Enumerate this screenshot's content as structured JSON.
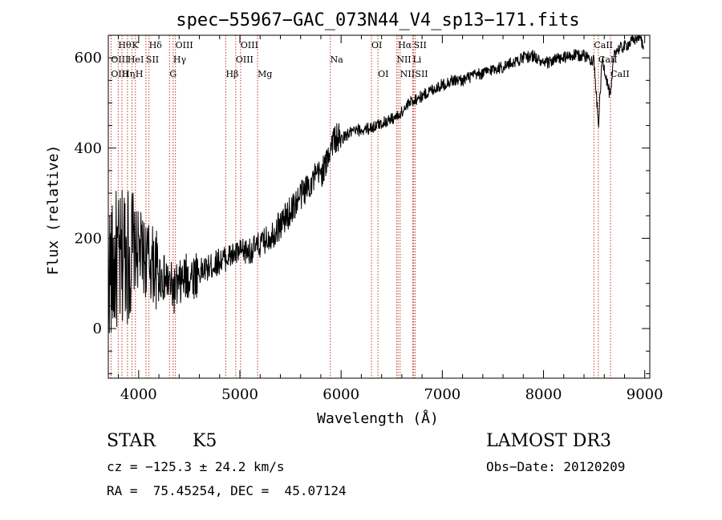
{
  "chart_data": {
    "type": "line",
    "title": "spec−55967−GAC_073N44_V4_sp13−171.fits",
    "xlabel": "Wavelength (Å)",
    "ylabel": "Flux (relative)",
    "xlim": [
      3700,
      9050
    ],
    "ylim": [
      -110,
      650
    ],
    "x_ticks": [
      4000,
      5000,
      6000,
      7000,
      8000,
      9000
    ],
    "x_tick_labels": [
      "4000",
      "5000",
      "6000",
      "7000",
      "8000",
      "9000"
    ],
    "y_ticks": [
      0,
      200,
      400,
      600
    ],
    "y_tick_labels": [
      "0",
      "200",
      "400",
      "600"
    ],
    "grid": false,
    "line_color": "#000000",
    "marker_color": "#c0392b",
    "series": [
      {
        "name": "flux",
        "x": [
          3700,
          3740,
          3780,
          3820,
          3860,
          3900,
          3950,
          4000,
          4050,
          4100,
          4150,
          4200,
          4250,
          4300,
          4350,
          4400,
          4450,
          4500,
          4600,
          4700,
          4800,
          4900,
          5000,
          5100,
          5200,
          5300,
          5400,
          5500,
          5600,
          5700,
          5800,
          5850,
          5890,
          5920,
          6000,
          6100,
          6200,
          6300,
          6400,
          6500,
          6560,
          6600,
          6700,
          6800,
          6900,
          7000,
          7100,
          7200,
          7300,
          7400,
          7500,
          7600,
          7700,
          7800,
          7900,
          8000,
          8100,
          8200,
          8300,
          8400,
          8498,
          8542,
          8580,
          8662,
          8700,
          8800,
          8900,
          8950,
          8990
        ],
        "y": [
          140,
          120,
          150,
          130,
          190,
          160,
          170,
          175,
          160,
          150,
          140,
          120,
          110,
          100,
          85,
          95,
          110,
          115,
          125,
          135,
          150,
          160,
          168,
          172,
          185,
          205,
          230,
          260,
          295,
          325,
          345,
          360,
          400,
          420,
          420,
          435,
          440,
          445,
          455,
          465,
          470,
          480,
          505,
          515,
          530,
          540,
          550,
          550,
          560,
          565,
          575,
          580,
          590,
          600,
          605,
          585,
          595,
          600,
          605,
          605,
          595,
          450,
          600,
          510,
          615,
          625,
          640,
          650,
          620
        ]
      }
    ],
    "line_markers": [
      {
        "label": "Hθ",
        "wavelength": 3798,
        "row": 1
      },
      {
        "label": "K",
        "wavelength": 3934,
        "row": 1
      },
      {
        "label": "Hδ",
        "wavelength": 4102,
        "row": 1
      },
      {
        "label": "OIII",
        "wavelength": 4363,
        "row": 1
      },
      {
        "label": "OIII",
        "wavelength": 5007,
        "row": 1
      },
      {
        "label": "OI",
        "wavelength": 6300,
        "row": 1
      },
      {
        "label": "Hα",
        "wavelength": 6563,
        "row": 1
      },
      {
        "label": "SII",
        "wavelength": 6717,
        "row": 1
      },
      {
        "label": "CaII",
        "wavelength": 8498,
        "row": 1
      },
      {
        "label": "OIII",
        "wavelength": 3727,
        "row": 2
      },
      {
        "label": "HeI",
        "wavelength": 3889,
        "row": 2
      },
      {
        "label": "SII",
        "wavelength": 4072,
        "row": 2
      },
      {
        "label": "Hγ",
        "wavelength": 4341,
        "row": 2
      },
      {
        "label": "OIII",
        "wavelength": 4959,
        "row": 2
      },
      {
        "label": "Na",
        "wavelength": 5893,
        "row": 2
      },
      {
        "label": "NII",
        "wavelength": 6548,
        "row": 2
      },
      {
        "label": "Li",
        "wavelength": 6708,
        "row": 2
      },
      {
        "label": "CaII",
        "wavelength": 8542,
        "row": 2
      },
      {
        "label": "OIII",
        "wavelength": 3727,
        "row": 3
      },
      {
        "label": "Hη",
        "wavelength": 3835,
        "row": 3
      },
      {
        "label": "H",
        "wavelength": 3968,
        "row": 3
      },
      {
        "label": "G",
        "wavelength": 4305,
        "row": 3
      },
      {
        "label": "Hβ",
        "wavelength": 4861,
        "row": 3
      },
      {
        "label": "Mg",
        "wavelength": 5175,
        "row": 3
      },
      {
        "label": "OI",
        "wavelength": 6364,
        "row": 3
      },
      {
        "label": "NII",
        "wavelength": 6583,
        "row": 3
      },
      {
        "label": "SII",
        "wavelength": 6731,
        "row": 3
      },
      {
        "label": "CaII",
        "wavelength": 8662,
        "row": 3
      }
    ],
    "marker_lines": [
      3727,
      3798,
      3835,
      3889,
      3934,
      3968,
      4072,
      4102,
      4305,
      4341,
      4363,
      4861,
      4959,
      5007,
      5175,
      5893,
      6300,
      6364,
      6548,
      6563,
      6583,
      6708,
      6717,
      6731,
      8498,
      8542,
      8662
    ]
  },
  "info": {
    "object_class": "STAR",
    "subclass": "K5",
    "survey": "LAMOST DR3",
    "cz": "cz = −125.3 ± 24.2 km/s",
    "obs_date": "Obs−Date: 20120209",
    "coords": "RA =  75.45254, DEC =  45.07124"
  }
}
